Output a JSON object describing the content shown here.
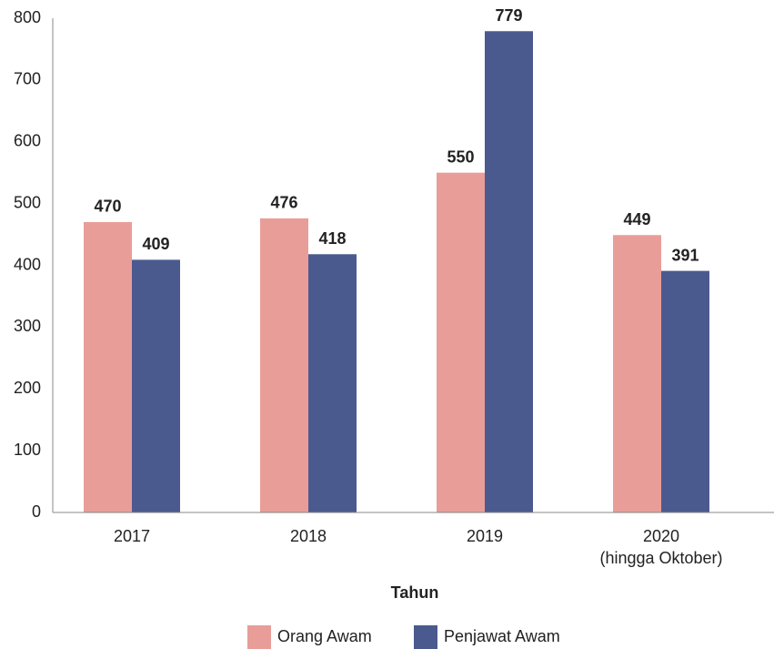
{
  "chart_data": {
    "type": "bar",
    "categories": [
      "2017",
      "2018",
      "2019",
      "2020\n(hingga Oktober)"
    ],
    "series": [
      {
        "name": "Orang Awam",
        "color": "#e99d99",
        "values": [
          470,
          476,
          550,
          449
        ]
      },
      {
        "name": "Penjawat Awam",
        "color": "#4b5a8e",
        "values": [
          409,
          418,
          779,
          391
        ]
      }
    ],
    "x_label": "Tahun",
    "ylim": [
      0,
      800
    ],
    "yticks": [
      0,
      100,
      200,
      300,
      400,
      500,
      600,
      700,
      800
    ],
    "legend": "bottom"
  }
}
